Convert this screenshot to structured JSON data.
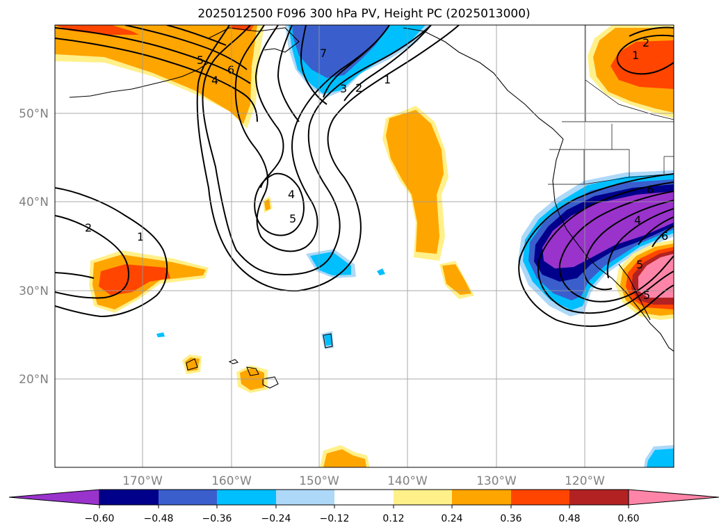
{
  "title": "2025012500 F096 300 hPa PV, Height PC (2025013000)",
  "map": {
    "lat_labels": [
      "50°N",
      "40°N",
      "30°N",
      "20°N"
    ],
    "lon_labels": [
      "170°W",
      "160°W",
      "150°W",
      "140°W",
      "130°W",
      "120°W"
    ],
    "gridlines": true,
    "extent": {
      "lon_min": -180,
      "lon_max": -110,
      "lat_min": 10,
      "lat_max": 60
    }
  },
  "colorbar": {
    "ticks": [
      "−0.60",
      "−0.48",
      "−0.36",
      "−0.24",
      "−0.12",
      "0.12",
      "0.24",
      "0.36",
      "0.48",
      "0.60"
    ],
    "colors": [
      "#9933cc",
      "#00008b",
      "#3a5fcd",
      "#00bfff",
      "#add8f8",
      "#ffffff",
      "#fff08a",
      "#ffa500",
      "#ff4500",
      "#b22222",
      "#ff85a8"
    ],
    "extend": "both"
  },
  "contour_labels": [
    "5",
    "6",
    "4",
    "7",
    "3",
    "2",
    "1",
    "2",
    "1",
    "4",
    "5",
    "2",
    "1",
    "6",
    "5",
    "4",
    "6",
    "5"
  ]
}
